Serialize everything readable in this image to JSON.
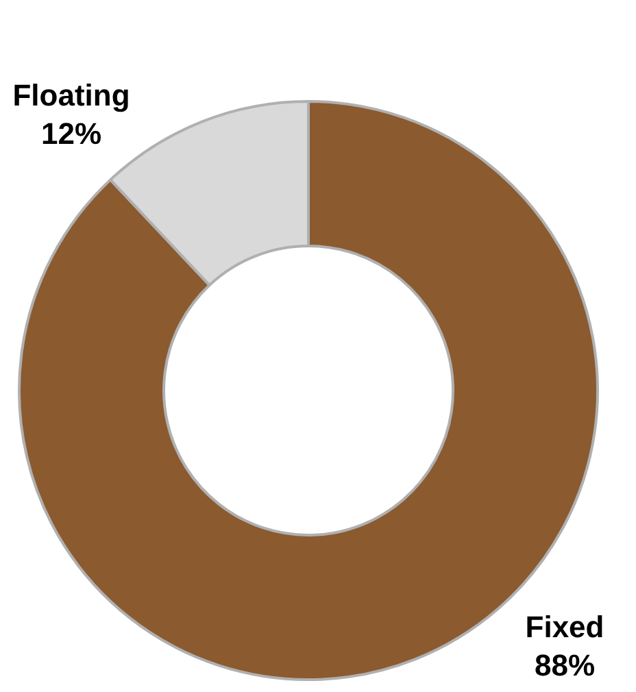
{
  "chart_data": {
    "type": "donut",
    "categories": [
      "Fixed",
      "Floating"
    ],
    "values": [
      88,
      12
    ],
    "colors": [
      "#8b5a2f",
      "#d9d9d9"
    ],
    "value_labels": [
      "88%",
      "12%"
    ],
    "legend": false
  }
}
